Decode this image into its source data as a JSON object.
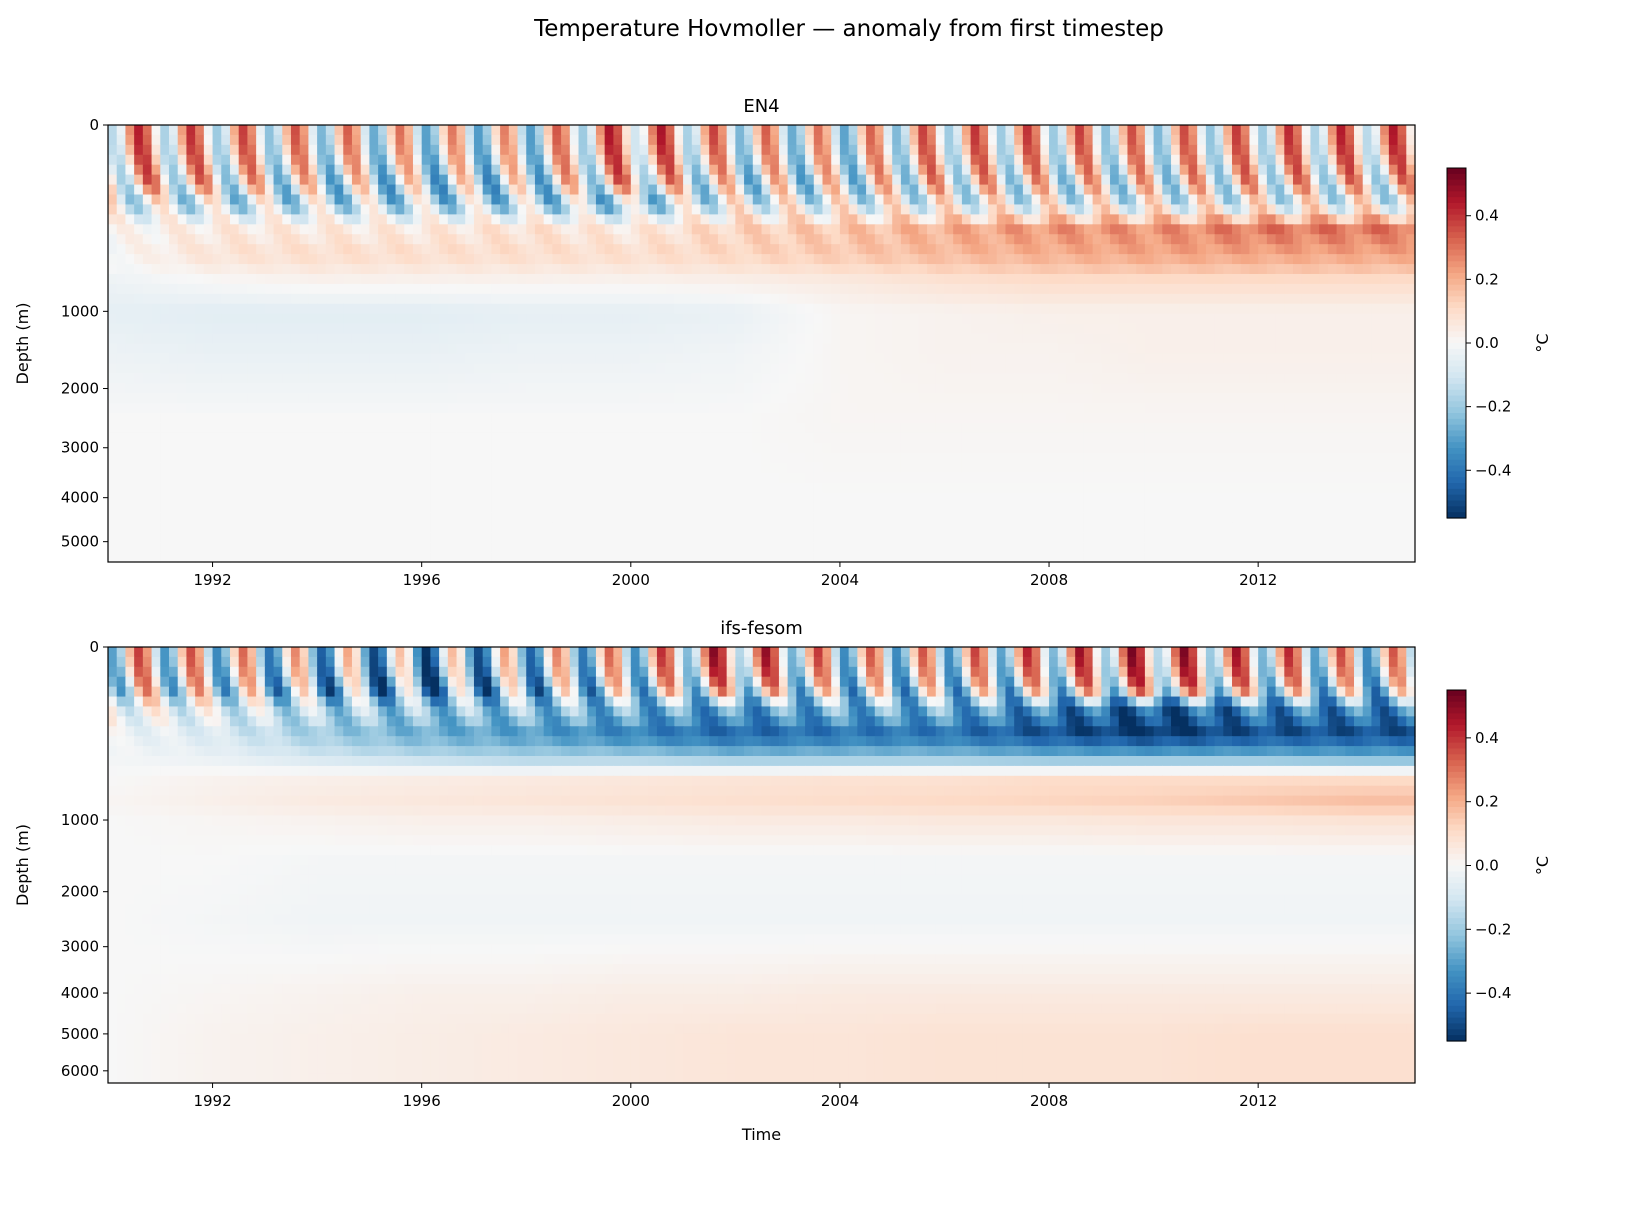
{
  "title": "Temperature Hovmoller — anomaly from first timestep",
  "chart_data": [
    {
      "type": "heatmap",
      "title": "EN4",
      "xlabel": "",
      "ylabel": "Depth (m)",
      "xlim": [
        1990,
        2015
      ],
      "ylim": [
        5500,
        0
      ],
      "yscale": "sqrt",
      "xticks": [
        "1992",
        "1996",
        "2000",
        "2004",
        "2008",
        "2012"
      ],
      "yticks": [
        "0",
        "1000",
        "2000",
        "3000",
        "4000",
        "5000"
      ],
      "colormap": "RdBu_r",
      "vlim": [
        -0.55,
        0.55
      ],
      "colorbar_label": "°C",
      "colorbar_ticks": [
        "0.4",
        "0.2",
        "0.0",
        "−0.2",
        "−0.4"
      ],
      "years": [
        1990,
        1992,
        1994,
        1996,
        1998,
        2000,
        2002,
        2004,
        2006,
        2008,
        2010,
        2012,
        2014
      ],
      "depths": [
        0,
        100,
        180,
        300,
        480,
        700,
        1000,
        1500,
        2500,
        4000,
        5500
      ],
      "values": [
        [
          0.15,
          0.1,
          0.05,
          0,
          -0.02,
          0.2,
          0.05,
          0.0,
          0.1,
          0.1,
          0.05,
          0.1,
          0.15
        ],
        [
          0.1,
          0.05,
          -0.05,
          -0.1,
          -0.1,
          0.1,
          -0.05,
          -0.05,
          0.05,
          0,
          0,
          0.05,
          0.05
        ],
        [
          -0.05,
          -0.12,
          -0.12,
          -0.15,
          -0.15,
          -0.2,
          -0.05,
          -0.05,
          -0.05,
          -0.05,
          -0.05,
          -0.05,
          -0.05
        ],
        [
          0,
          0.05,
          0.05,
          0.05,
          0.08,
          0.05,
          0.12,
          0.15,
          0.2,
          0.25,
          0.25,
          0.3,
          0.3
        ],
        [
          0,
          0.08,
          0.1,
          0.1,
          0.1,
          0.1,
          0.12,
          0.15,
          0.18,
          0.2,
          0.22,
          0.22,
          0.22
        ],
        [
          -0.03,
          0,
          0.02,
          0.02,
          0.02,
          0.02,
          0.03,
          0.05,
          0.08,
          0.1,
          0.1,
          0.1,
          0.1
        ],
        [
          -0.05,
          -0.06,
          -0.06,
          -0.06,
          -0.05,
          -0.05,
          -0.04,
          0.01,
          0.02,
          0.03,
          0.03,
          0.03,
          0.03
        ],
        [
          -0.03,
          -0.04,
          -0.04,
          -0.04,
          -0.03,
          -0.03,
          -0.02,
          0.01,
          0.02,
          0.02,
          0.03,
          0.03,
          0.03
        ],
        [
          0,
          0,
          0,
          0,
          0,
          0,
          0,
          0.01,
          0.01,
          0.01,
          0.01,
          0.01,
          0.01
        ],
        [
          0,
          0,
          0,
          0,
          0,
          0,
          0,
          0,
          0,
          0,
          0,
          0,
          0
        ],
        [
          0,
          0,
          0,
          0,
          0,
          0,
          0,
          0,
          0,
          0,
          0,
          0,
          0
        ]
      ],
      "seasonal_amplitude": [
        0.3,
        0.3,
        0.2,
        0.05,
        0.02,
        0,
        0,
        0,
        0,
        0,
        0
      ]
    },
    {
      "type": "heatmap",
      "title": "ifs-fesom",
      "xlabel": "Time",
      "ylabel": "Depth (m)",
      "xlim": [
        1990,
        2015
      ],
      "ylim": [
        6350,
        0
      ],
      "yscale": "sqrt",
      "xticks": [
        "1992",
        "1996",
        "2000",
        "2004",
        "2008",
        "2012"
      ],
      "yticks": [
        "0",
        "1000",
        "2000",
        "3000",
        "4000",
        "5000",
        "6000"
      ],
      "colormap": "RdBu_r",
      "vlim": [
        -0.55,
        0.55
      ],
      "colorbar_label": "°C",
      "colorbar_ticks": [
        "0.4",
        "0.2",
        "0.0",
        "−0.2",
        "−0.4"
      ],
      "years": [
        1990,
        1992,
        1994,
        1996,
        1998,
        2000,
        2002,
        2004,
        2006,
        2008,
        2010,
        2012,
        2014
      ],
      "depths": [
        0,
        60,
        120,
        250,
        430,
        560,
        800,
        1000,
        1500,
        2500,
        4000,
        5000,
        6350
      ],
      "values": [
        [
          0.05,
          0,
          -0.1,
          -0.2,
          -0.1,
          0,
          0.2,
          0,
          0,
          0.1,
          0.2,
          0.1,
          0
        ],
        [
          0,
          -0.05,
          -0.2,
          -0.3,
          -0.2,
          -0.1,
          0.05,
          -0.1,
          -0.1,
          -0.05,
          0.1,
          0,
          -0.1
        ],
        [
          0,
          -0.05,
          -0.15,
          -0.2,
          -0.2,
          -0.25,
          -0.3,
          -0.25,
          -0.25,
          -0.35,
          -0.45,
          -0.35,
          -0.35
        ],
        [
          -0.02,
          -0.08,
          -0.2,
          -0.28,
          -0.32,
          -0.38,
          -0.45,
          -0.42,
          -0.42,
          -0.5,
          -0.55,
          -0.5,
          -0.5
        ],
        [
          -0.01,
          -0.03,
          -0.08,
          -0.12,
          -0.15,
          -0.15,
          -0.18,
          -0.18,
          -0.18,
          -0.2,
          -0.2,
          -0.2,
          -0.22
        ],
        [
          0,
          0.02,
          0.03,
          0.04,
          0.05,
          0.06,
          0.07,
          0.08,
          0.08,
          0.1,
          0.1,
          0.1,
          0.1
        ],
        [
          0.01,
          0.03,
          0.05,
          0.06,
          0.07,
          0.08,
          0.09,
          0.1,
          0.11,
          0.12,
          0.13,
          0.15,
          0.17
        ],
        [
          0,
          0.01,
          0.02,
          0.03,
          0.03,
          0.04,
          0.05,
          0.05,
          0.06,
          0.06,
          0.07,
          0.07,
          0.08
        ],
        [
          0,
          0,
          -0.01,
          -0.01,
          -0.01,
          -0.01,
          -0.01,
          -0.01,
          -0.01,
          -0.01,
          -0.01,
          -0.01,
          -0.01
        ],
        [
          0,
          -0.01,
          -0.02,
          -0.02,
          -0.02,
          -0.02,
          -0.02,
          -0.02,
          -0.02,
          -0.02,
          -0.02,
          -0.02,
          -0.02
        ],
        [
          0,
          0.01,
          0.02,
          0.03,
          0.03,
          0.04,
          0.04,
          0.05,
          0.05,
          0.05,
          0.05,
          0.05,
          0.05
        ],
        [
          0,
          0.02,
          0.03,
          0.04,
          0.05,
          0.06,
          0.07,
          0.07,
          0.08,
          0.08,
          0.08,
          0.09,
          0.09
        ],
        [
          0,
          0.02,
          0.03,
          0.04,
          0.05,
          0.06,
          0.07,
          0.07,
          0.08,
          0.08,
          0.08,
          0.09,
          0.09
        ]
      ],
      "seasonal_amplitude": [
        0.35,
        0.35,
        0.15,
        0.03,
        0,
        0,
        0,
        0,
        0,
        0,
        0,
        0,
        0
      ]
    }
  ]
}
